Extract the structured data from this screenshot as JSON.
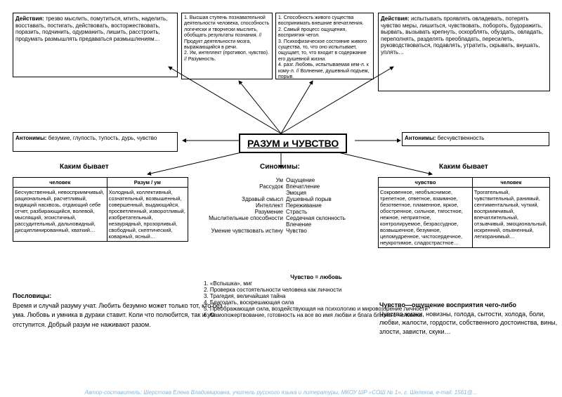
{
  "center_title": "РАЗУМ и ЧУВСТВО",
  "top_left": {
    "heading": "Действия:",
    "text": "трезво мыслить, помутиться, мтить, наделить, восставать, постигать, действовать, восторжествовать, поразить, подчинить, одурманить, лишить, расстроить, продумать размышлять предаваться размышлениям…"
  },
  "top_mid1": {
    "text": "1. Высшая ступень познавательной деятельности человека, способность логически и творчески мыслить, обобщать результаты познания. // Продукт деятельности мозга, выражающийся в речи.\n2. Ум, интеллект (противоп. чувство). // Разумность."
  },
  "top_mid2": {
    "text": "1. Способность живого существа воспринимать внешние впечатления.\n2. Самый процесс ощущения, восприятия чегол.\n3. Психофизическое состояние живого существа, то, что оно испытывает, ощущает, то, что входит в содержание его душевной жизни.\n4. разг. Любовь, испытываемая кем-л. к кому-л. // Волнение, душевный подъем, порыв."
  },
  "top_right": {
    "heading": "Действия:",
    "text": "испытывать проявлять овладевать, потерять чувство меры, лишиться, чувствовать, побороть, будоражить, вырвать, вызывать крепнуть, оскорблять, обуздать, овладать, переполнять, разделять преобладать, пересилеть, руководствоваться, подавлять, утратить, скрывать, внушать, уплять…"
  },
  "ant_left": {
    "heading": "Антонимы:",
    "text": "безумие, глупость, тупость, дурь, чувство"
  },
  "ant_right": {
    "heading": "Антонимы:",
    "text": "бесчувственность"
  },
  "kakim_left": "Каким бывает",
  "kakim_right": "Каким бывает",
  "syn_label": "Синонимы:",
  "table_left": {
    "h1": "человек",
    "h2": "Разум / ум",
    "c1": "Бесчувственный, невосприимчивый, рациональный, расчетливый, видящий насквозь, отдающий себе отчет, разбирающийся, волевой, мыслящий, эгоистичный, рассудительный, дальновидный, дисциплинированный, хваткий…",
    "c2": "Холодный, коллективный, сознательный, возвышенный, совершенный, выдающийся, просветленный, изворотливый, изобретательный, незаурядный, прозорливый, свободный, скептический, коварный, ясный…"
  },
  "table_right": {
    "h1": "чувство",
    "h2": "человек",
    "c1": "Сокровенное, необъяснимое, трепетное, ответное, взаимное, безответное, пламенное, яркое, обостренное, сильное, тягостное, нежное, неприятное, контролируемое, безрассудное, возвышенное, безумное, целомудренное, чистосердечное, неукротимое, сладострастное…",
    "c2": "Трогательный, чувствительный, ранимый, сентиментальный, чуткий, восприимчивый, впечатлительный, отзывчивый, эмоциональный, искренний, опьяненный, легкоранимый…"
  },
  "syn_cols": {
    "left": [
      "Ум",
      "Рассудок",
      "",
      "Здравый смысл",
      "Интеллект",
      "Разумение",
      "Мыслительные способности",
      "",
      "Умение чувствовать истину"
    ],
    "right": [
      "Ощущение",
      "Впечатление",
      "Эмоция",
      "Душевный порыв",
      "Переживание",
      "Страсть",
      "Сердечная склонность",
      "Влечение",
      "Чувство"
    ]
  },
  "chuv_lyubov": {
    "title": "Чувство = любовь",
    "items": [
      "1. «Вспышка», миг",
      "2. Проверка состоятельности человека как личности",
      "3. Трагедия, величайшая тайна",
      "4. Благодать, воскрешающая сила",
      "5. Преображающая сила, воздействующая на психологию и мировоззрение личности",
      "6. Самопожертвование, готовность на все во имя любви и блага близкого человека"
    ]
  },
  "posl": {
    "heading": "Пословицы:",
    "text": "Время и случай разуму учат. Любить безумно может только тот, кто без ума. Любовь и умника в дураки ставит. Коли что полюбится, так и ум отступится. Добрый разум не наживают разом."
  },
  "chuv_right": {
    "heading": "Чувство—ощущение восприятия чего-либо",
    "text": "Чувство жизни, новизны, голода, сытости, холода, боли, любви, жалости, гордости, собственного достоинства, вины, злости, зависти, скуки…"
  },
  "footer": "Автор-составитель: Шерстова Елена Владимировна, учитель русского языка и литературы, МКОУ ШР «СОШ № 1», г. Шелехов, e-mail: 1561@..."
}
